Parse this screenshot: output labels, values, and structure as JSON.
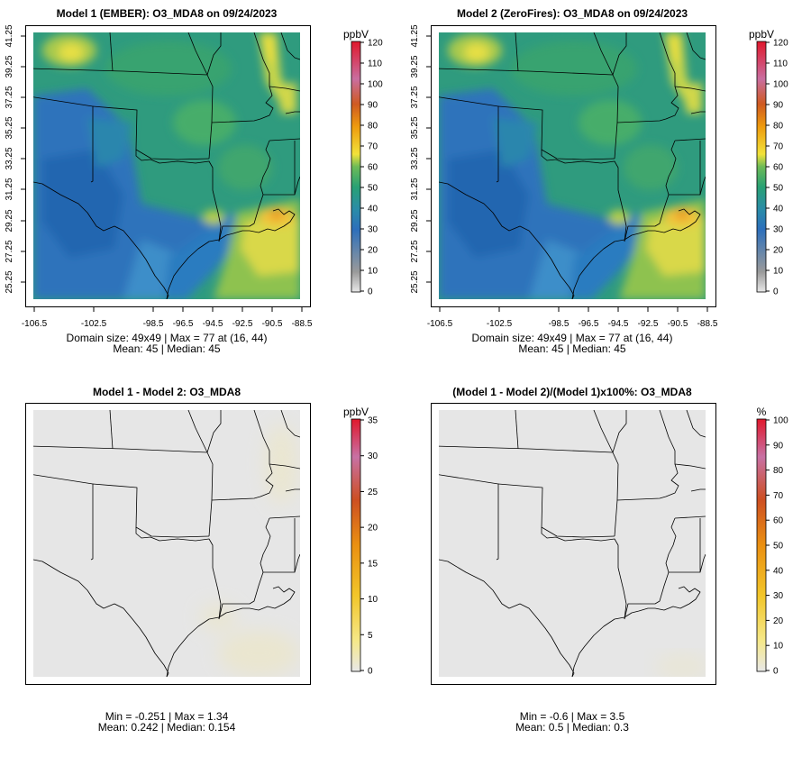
{
  "panels": [
    {
      "id": "p1",
      "title": "Model 1 (EMBER): O3_MDA8 on 09/24/2023",
      "kind": "conc",
      "show_axes": true,
      "colorbar": {
        "unit": "ppbV",
        "ticks": [
          "120",
          "110",
          "100",
          "90",
          "80",
          "70",
          "60",
          "50",
          "40",
          "30",
          "20",
          "10",
          "0"
        ]
      },
      "stats": [
        "Domain size: 49x49 | Max = 77 at (16, 44)",
        "Mean: 45 |  Median: 45"
      ]
    },
    {
      "id": "p2",
      "title": "Model 2 (ZeroFires): O3_MDA8 on 09/24/2023",
      "kind": "conc",
      "show_axes": true,
      "colorbar": {
        "unit": "ppbV",
        "ticks": [
          "120",
          "110",
          "100",
          "90",
          "80",
          "70",
          "60",
          "50",
          "40",
          "30",
          "20",
          "10",
          "0"
        ]
      },
      "stats": [
        "Domain size: 49x49 | Max = 77 at (16, 44)",
        "Mean: 45 |  Median: 45"
      ]
    },
    {
      "id": "p3",
      "title": "Model 1 - Model 2: O3_MDA8",
      "kind": "diff",
      "show_axes": false,
      "colorbar": {
        "unit": "ppbV",
        "ticks": [
          "35",
          "30",
          "25",
          "20",
          "15",
          "10",
          "5",
          "0"
        ]
      },
      "stats": [
        "Min = -0.251 | Max = 1.34",
        "Mean: 0.242 |  Median: 0.154"
      ]
    },
    {
      "id": "p4",
      "title": "(Model 1 - Model 2)/(Model 1)x100%: O3_MDA8",
      "kind": "pct",
      "show_axes": false,
      "colorbar": {
        "unit": "%",
        "ticks": [
          "100",
          "90",
          "80",
          "70",
          "60",
          "50",
          "40",
          "30",
          "20",
          "10",
          "0"
        ]
      },
      "stats": [
        "Min = -0.6 | Max = 3.5",
        "Mean: 0.5 |  Median: 0.3"
      ]
    }
  ],
  "axes": {
    "x_ticks": [
      "-106.5",
      "-102.5",
      "-98.5",
      "-96.5",
      "-94.5",
      "-92.5",
      "-90.5",
      "-88.5"
    ],
    "y_ticks": [
      "41.25",
      "39.25",
      "37.25",
      "35.25",
      "33.25",
      "31.25",
      "29.25",
      "27.25",
      "25.25"
    ]
  },
  "colors": {
    "conc_ramp": [
      "#e8e8e8",
      "#9a9a9a",
      "#2d6fbb",
      "#2a8ca8",
      "#29a174",
      "#6dbb57",
      "#f2e23a",
      "#ee9b0e",
      "#cf5a21",
      "#c96ea0",
      "#e0182c"
    ],
    "diff_ramp": [
      "#e8e8e8",
      "#f5e88a",
      "#f2c62a",
      "#ea9012",
      "#cd4f22",
      "#c871a4",
      "#e0182c"
    ],
    "map_background": "#e6e6e6",
    "boundary": "#000000"
  }
}
